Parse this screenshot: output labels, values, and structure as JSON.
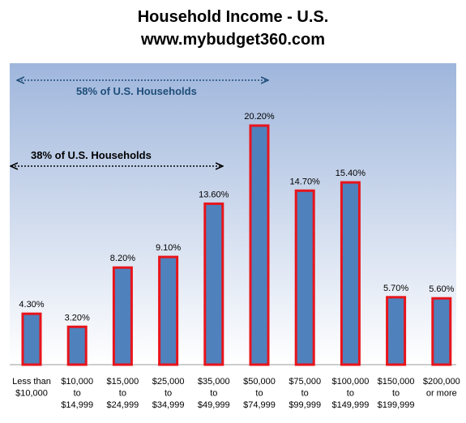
{
  "chart_data": {
    "type": "bar",
    "title": "Household Income - U.S.",
    "subtitle": "www.mybudget360.com",
    "categories": [
      [
        "Less than",
        "$10,000"
      ],
      [
        "$10,000",
        "to",
        "$14,999"
      ],
      [
        "$15,000",
        "to",
        "$24,999"
      ],
      [
        "$25,000",
        "to",
        "$34,999"
      ],
      [
        "$35,000",
        "to",
        "$49,999"
      ],
      [
        "$50,000",
        "to",
        "$74,999"
      ],
      [
        "$75,000",
        "to",
        "$99,999"
      ],
      [
        "$100,000",
        "to",
        "$149,999"
      ],
      [
        "$150,000",
        "to",
        "$199,999"
      ],
      [
        "$200,000",
        "or more"
      ]
    ],
    "values": [
      4.3,
      3.2,
      8.2,
      9.1,
      13.6,
      20.2,
      14.7,
      15.4,
      5.7,
      5.6
    ],
    "data_labels": [
      "4.30%",
      "3.20%",
      "8.20%",
      "9.10%",
      "13.60%",
      "20.20%",
      "14.70%",
      "15.40%",
      "5.70%",
      "5.60%"
    ],
    "ylim": [
      0,
      23
    ],
    "grid": false,
    "annotations": [
      {
        "text": "58% of U.S. Households",
        "color": "#1f4e79"
      },
      {
        "text": "38% of U.S. Households",
        "color": "#000000"
      }
    ],
    "colors": {
      "bar_fill": "#4f81bd",
      "bar_border": "#e8141b",
      "bg_top": "#9fb6dc",
      "bg_bottom": "#ffffff"
    }
  }
}
